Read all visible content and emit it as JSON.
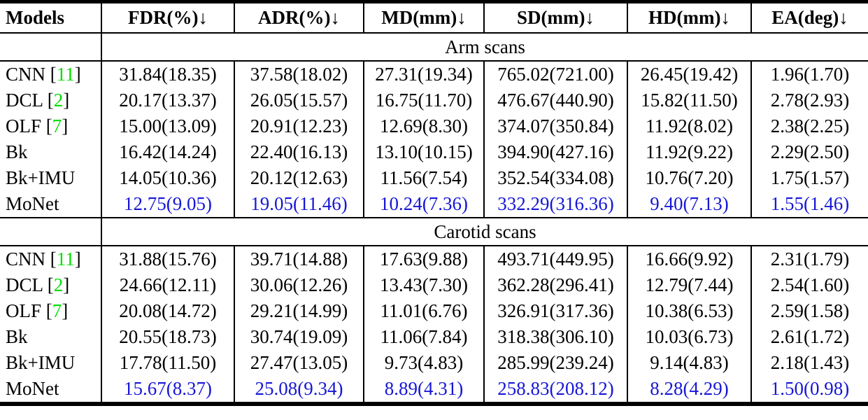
{
  "table": {
    "columns": [
      "Models",
      "FDR(%)↓",
      "ADR(%)↓",
      "MD(mm)↓",
      "SD(mm)↓",
      "HD(mm)↓",
      "EA(deg)↓"
    ],
    "colors": {
      "citation_green": "#00dd00",
      "highlight_blue": "#1717d6",
      "text_black": "#000000"
    },
    "sections": [
      {
        "label": "Arm scans",
        "rows": [
          {
            "model": "CNN",
            "cite": "11",
            "highlight": false,
            "values": [
              "31.84(18.35)",
              "37.58(18.02)",
              "27.31(19.34)",
              "765.02(721.00)",
              "26.45(19.42)",
              "1.96(1.70)"
            ]
          },
          {
            "model": "DCL",
            "cite": "2",
            "highlight": false,
            "values": [
              "20.17(13.37)",
              "26.05(15.57)",
              "16.75(11.70)",
              "476.67(440.90)",
              "15.82(11.50)",
              "2.78(2.93)"
            ]
          },
          {
            "model": "OLF",
            "cite": "7",
            "highlight": false,
            "values": [
              "15.00(13.09)",
              "20.91(12.23)",
              "12.69(8.30)",
              "374.07(350.84)",
              "11.92(8.02)",
              "2.38(2.25)"
            ]
          },
          {
            "model": "Bk",
            "cite": null,
            "highlight": false,
            "values": [
              "16.42(14.24)",
              "22.40(16.13)",
              "13.10(10.15)",
              "394.90(427.16)",
              "11.92(9.22)",
              "2.29(2.50)"
            ]
          },
          {
            "model": "Bk+IMU",
            "cite": null,
            "highlight": false,
            "values": [
              "14.05(10.36)",
              "20.12(12.63)",
              "11.56(7.54)",
              "352.54(334.08)",
              "10.76(7.20)",
              "1.75(1.57)"
            ]
          },
          {
            "model": "MoNet",
            "cite": null,
            "highlight": true,
            "values": [
              "12.75(9.05)",
              "19.05(11.46)",
              "10.24(7.36)",
              "332.29(316.36)",
              "9.40(7.13)",
              "1.55(1.46)"
            ]
          }
        ]
      },
      {
        "label": "Carotid scans",
        "rows": [
          {
            "model": "CNN",
            "cite": "11",
            "highlight": false,
            "values": [
              "31.88(15.76)",
              "39.71(14.88)",
              "17.63(9.88)",
              "493.71(449.95)",
              "16.66(9.92)",
              "2.31(1.79)"
            ]
          },
          {
            "model": "DCL",
            "cite": "2",
            "highlight": false,
            "values": [
              "24.66(12.11)",
              "30.06(12.26)",
              "13.43(7.30)",
              "362.28(296.41)",
              "12.79(7.44)",
              "2.54(1.60)"
            ]
          },
          {
            "model": "OLF",
            "cite": "7",
            "highlight": false,
            "values": [
              "20.08(14.72)",
              "29.21(14.99)",
              "11.01(6.76)",
              "326.91(317.36)",
              "10.38(6.53)",
              "2.59(1.58)"
            ]
          },
          {
            "model": "Bk",
            "cite": null,
            "highlight": false,
            "values": [
              "20.55(18.73)",
              "30.74(19.09)",
              "11.06(7.84)",
              "318.38(306.10)",
              "10.03(6.73)",
              "2.61(1.72)"
            ]
          },
          {
            "model": "Bk+IMU",
            "cite": null,
            "highlight": false,
            "values": [
              "17.78(11.50)",
              "27.47(13.05)",
              "9.73(4.83)",
              "285.99(239.24)",
              "9.14(4.83)",
              "2.18(1.43)"
            ]
          },
          {
            "model": "MoNet",
            "cite": null,
            "highlight": true,
            "values": [
              "15.67(8.37)",
              "25.08(9.34)",
              "8.89(4.31)",
              "258.83(208.12)",
              "8.28(4.29)",
              "1.50(0.98)"
            ]
          }
        ]
      }
    ]
  }
}
